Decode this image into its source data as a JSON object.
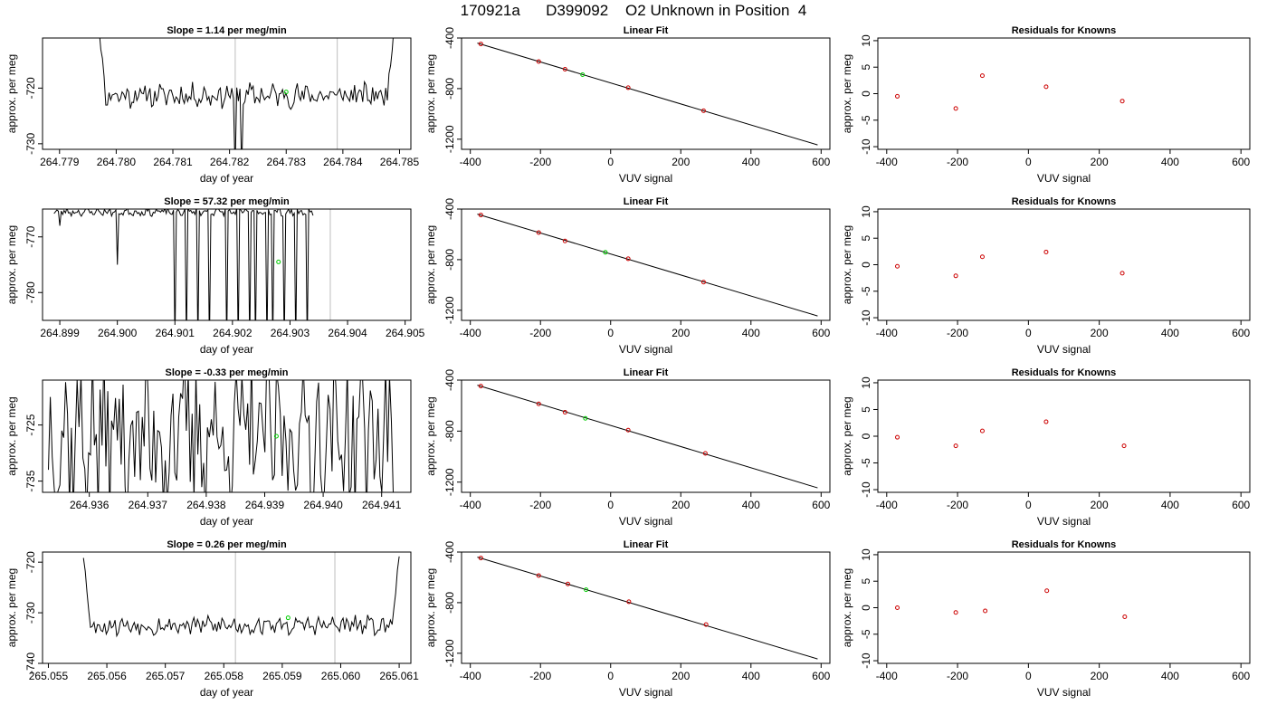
{
  "figure": {
    "title": "170921a      D399092    O2 Unknown in Position  4"
  },
  "chart_data": [
    {
      "type": "line",
      "panel": "trace-1",
      "title": "Slope =  1.14  per meg/min",
      "xlabel": "day of year",
      "ylabel": "approx. per meg",
      "xlim": [
        264.7787,
        264.7852
      ],
      "ylim": [
        -731,
        -711
      ],
      "xticks": [
        "264.779",
        "264.780",
        "264.781",
        "264.782",
        "264.783",
        "264.784",
        "264.785"
      ],
      "yticks": [
        "-720",
        "-730"
      ],
      "vlines": [
        264.7821,
        264.7839
      ],
      "marker": {
        "x": 264.783,
        "y": -720.7,
        "color": "#00cc00"
      },
      "line": {
        "x_start": 264.7797,
        "x_end": 264.7849,
        "seed": 11,
        "baseline": -721.3,
        "amp": 1.8,
        "edge_up": 12,
        "spikes": [
          [
            264.7821,
            -735
          ],
          [
            264.7822,
            -711
          ],
          [
            264.7822,
            -735
          ]
        ]
      }
    },
    {
      "type": "scatter",
      "panel": "fit-1",
      "title": "Linear Fit",
      "xlabel": "VUV signal",
      "ylabel": "approx. per meg",
      "xlim": [
        -425,
        625
      ],
      "ylim": [
        -1280,
        -400
      ],
      "xticks": [
        "-400",
        "-200",
        "0",
        "200",
        "400",
        "600"
      ],
      "yticks": [
        "-400",
        "-800",
        "-1200"
      ],
      "fit": {
        "x0": -380,
        "y0": -440,
        "x1": 590,
        "y1": -1245
      },
      "knowns": [
        {
          "x": -370,
          "y": -447
        },
        {
          "x": -205,
          "y": -586
        },
        {
          "x": -130,
          "y": -647
        },
        {
          "x": 50,
          "y": -793
        },
        {
          "x": 265,
          "y": -975
        }
      ],
      "unknown": {
        "x": -80,
        "y": -690
      }
    },
    {
      "type": "scatter",
      "panel": "resid-1",
      "title": "Residuals for Knowns",
      "xlabel": "VUV signal",
      "ylabel": "approx. per meg",
      "xlim": [
        -425,
        625
      ],
      "ylim": [
        -10.5,
        10.5
      ],
      "xticks": [
        "-400",
        "-200",
        "0",
        "200",
        "400",
        "600"
      ],
      "yticks": [
        "10",
        "5",
        "0",
        "-5",
        "-10"
      ],
      "points": [
        {
          "x": -370,
          "y": -0.5
        },
        {
          "x": -205,
          "y": -2.8
        },
        {
          "x": -130,
          "y": 3.4
        },
        {
          "x": 50,
          "y": 1.3
        },
        {
          "x": 265,
          "y": -1.4
        }
      ]
    },
    {
      "type": "line",
      "panel": "trace-2",
      "title": "Slope =  57.32  per meg/min",
      "xlabel": "day of year",
      "ylabel": "approx. per meg",
      "xlim": [
        264.8987,
        264.9051
      ],
      "ylim": [
        -785,
        -765
      ],
      "xticks": [
        "264.899",
        "264.900",
        "264.901",
        "264.902",
        "264.903",
        "264.904",
        "264.905"
      ],
      "yticks": [
        "-770",
        "-780"
      ],
      "vlines": [
        264.9037
      ],
      "marker": {
        "x": 264.9028,
        "y": -774.5,
        "color": "#00cc00"
      },
      "line": {
        "x_start": 264.8989,
        "x_end": 264.9034,
        "seed": 23,
        "baseline": -765.5,
        "amp": 0.6,
        "edge_up": 0,
        "spikes": [
          [
            264.899,
            -768
          ],
          [
            264.9,
            -775
          ],
          [
            264.901,
            -790
          ],
          [
            264.9012,
            -790
          ],
          [
            264.9014,
            -790
          ],
          [
            264.9016,
            -790
          ],
          [
            264.9019,
            -790
          ],
          [
            264.9021,
            -790
          ],
          [
            264.9023,
            -790
          ],
          [
            264.9024,
            -790
          ],
          [
            264.9026,
            -790
          ],
          [
            264.9027,
            -790
          ],
          [
            264.9029,
            -790
          ],
          [
            264.9031,
            -790
          ],
          [
            264.9033,
            -790
          ]
        ]
      }
    },
    {
      "type": "scatter",
      "panel": "fit-2",
      "title": "Linear Fit",
      "xlabel": "VUV signal",
      "ylabel": "approx. per meg",
      "xlim": [
        -425,
        625
      ],
      "ylim": [
        -1280,
        -400
      ],
      "xticks": [
        "-400",
        "-200",
        "0",
        "200",
        "400",
        "600"
      ],
      "yticks": [
        "-400",
        "-800",
        "-1200"
      ],
      "fit": {
        "x0": -380,
        "y0": -440,
        "x1": 590,
        "y1": -1245
      },
      "knowns": [
        {
          "x": -370,
          "y": -447
        },
        {
          "x": -205,
          "y": -586
        },
        {
          "x": -130,
          "y": -652
        },
        {
          "x": 50,
          "y": -793
        },
        {
          "x": 265,
          "y": -978
        }
      ],
      "unknown": {
        "x": -15,
        "y": -742
      }
    },
    {
      "type": "scatter",
      "panel": "resid-2",
      "title": "Residuals for Knowns",
      "xlabel": "VUV signal",
      "ylabel": "approx. per meg",
      "xlim": [
        -425,
        625
      ],
      "ylim": [
        -10.5,
        10.5
      ],
      "xticks": [
        "-400",
        "-200",
        "0",
        "200",
        "400",
        "600"
      ],
      "yticks": [
        "10",
        "5",
        "0",
        "-5",
        "-10"
      ],
      "points": [
        {
          "x": -370,
          "y": -0.3
        },
        {
          "x": -205,
          "y": -2.1
        },
        {
          "x": -130,
          "y": 1.5
        },
        {
          "x": 50,
          "y": 2.4
        },
        {
          "x": 265,
          "y": -1.6
        }
      ]
    },
    {
      "type": "line",
      "panel": "trace-3",
      "title": "Slope =  -0.33  per meg/min",
      "xlabel": "day of year",
      "ylabel": "approx. per meg",
      "xlim": [
        264.9352,
        264.9415
      ],
      "ylim": [
        -737,
        -717
      ],
      "xticks": [
        "264.936",
        "264.937",
        "264.938",
        "264.939",
        "264.940",
        "264.941"
      ],
      "yticks": [
        "-725",
        "-735"
      ],
      "vlines": [],
      "marker": {
        "x": 264.9392,
        "y": -727,
        "color": "#00cc00"
      },
      "line": {
        "x_start": 264.9353,
        "x_end": 264.9412,
        "seed": 37,
        "baseline": -727,
        "amp": 12,
        "edge_up": 0,
        "spikes": []
      }
    },
    {
      "type": "scatter",
      "panel": "fit-3",
      "title": "Linear Fit",
      "xlabel": "VUV signal",
      "ylabel": "approx. per meg",
      "xlim": [
        -425,
        625
      ],
      "ylim": [
        -1280,
        -400
      ],
      "xticks": [
        "-400",
        "-200",
        "0",
        "200",
        "400",
        "600"
      ],
      "yticks": [
        "-400",
        "-800",
        "-1200"
      ],
      "fit": {
        "x0": -380,
        "y0": -440,
        "x1": 590,
        "y1": -1245
      },
      "knowns": [
        {
          "x": -370,
          "y": -447
        },
        {
          "x": -205,
          "y": -586
        },
        {
          "x": -130,
          "y": -652
        },
        {
          "x": 50,
          "y": -792
        },
        {
          "x": 270,
          "y": -975
        }
      ],
      "unknown": {
        "x": -72,
        "y": -700
      }
    },
    {
      "type": "scatter",
      "panel": "resid-3",
      "title": "Residuals for Knowns",
      "xlabel": "VUV signal",
      "ylabel": "approx. per meg",
      "xlim": [
        -425,
        625
      ],
      "ylim": [
        -10.5,
        10.5
      ],
      "xticks": [
        "-400",
        "-200",
        "0",
        "200",
        "400",
        "600"
      ],
      "yticks": [
        "10",
        "5",
        "0",
        "-5",
        "-10"
      ],
      "points": [
        {
          "x": -370,
          "y": -0.2
        },
        {
          "x": -205,
          "y": -1.8
        },
        {
          "x": -130,
          "y": 1.0
        },
        {
          "x": 50,
          "y": 2.7
        },
        {
          "x": 270,
          "y": -1.8
        }
      ]
    },
    {
      "type": "line",
      "panel": "trace-4",
      "title": "Slope =  0.26  per meg/min",
      "xlabel": "day of year",
      "ylabel": "approx. per meg",
      "xlim": [
        265.0549,
        265.0612
      ],
      "ylim": [
        -740,
        -718
      ],
      "xticks": [
        "265.055",
        "265.056",
        "265.057",
        "265.058",
        "265.059",
        "265.060",
        "265.061"
      ],
      "yticks": [
        "-720",
        "-730",
        "-740"
      ],
      "vlines": [
        265.0582,
        265.0599
      ],
      "marker": {
        "x": 265.0591,
        "y": -731,
        "color": "#00cc00"
      },
      "line": {
        "x_start": 265.0556,
        "x_end": 265.061,
        "seed": 53,
        "baseline": -732.5,
        "amp": 1.6,
        "edge_up": 14,
        "spikes": []
      }
    },
    {
      "type": "scatter",
      "panel": "fit-4",
      "title": "Linear Fit",
      "xlabel": "VUV signal",
      "ylabel": "approx. per meg",
      "xlim": [
        -425,
        625
      ],
      "ylim": [
        -1280,
        -400
      ],
      "xticks": [
        "-400",
        "-200",
        "0",
        "200",
        "400",
        "600"
      ],
      "yticks": [
        "-400",
        "-800",
        "-1200"
      ],
      "fit": {
        "x0": -380,
        "y0": -440,
        "x1": 590,
        "y1": -1245
      },
      "knowns": [
        {
          "x": -370,
          "y": -447
        },
        {
          "x": -205,
          "y": -586
        },
        {
          "x": -122,
          "y": -652
        },
        {
          "x": 52,
          "y": -793
        },
        {
          "x": 272,
          "y": -973
        }
      ],
      "unknown": {
        "x": -70,
        "y": -698
      }
    },
    {
      "type": "scatter",
      "panel": "resid-4",
      "title": "Residuals for Knowns",
      "xlabel": "VUV signal",
      "ylabel": "approx. per meg",
      "xlim": [
        -425,
        625
      ],
      "ylim": [
        -10.5,
        10.5
      ],
      "xticks": [
        "-400",
        "-200",
        "0",
        "200",
        "400",
        "600"
      ],
      "yticks": [
        "10",
        "5",
        "0",
        "-5",
        "-10"
      ],
      "points": [
        {
          "x": -370,
          "y": 0.0
        },
        {
          "x": -205,
          "y": -0.9
        },
        {
          "x": -122,
          "y": -0.6
        },
        {
          "x": 52,
          "y": 3.2
        },
        {
          "x": 272,
          "y": -1.7
        }
      ]
    }
  ],
  "colors": {
    "axis": "#000000",
    "trace": "#000000",
    "vline": "#c8c8c8",
    "known_point": "#cc0000",
    "unknown_point": "#00cc00",
    "fit_line": "#000000"
  }
}
